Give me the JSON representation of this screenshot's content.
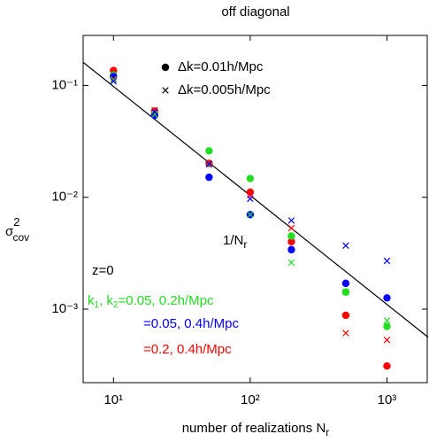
{
  "chart_data": {
    "type": "scatter",
    "title": "off diagonal",
    "x_label": {
      "text": "number of realizations N",
      "sub": "r"
    },
    "y_label": {
      "symbol": "σ",
      "sup": "2",
      "sub": "cov"
    },
    "x_log": true,
    "y_log": true,
    "xlim": [
      6,
      2000
    ],
    "ylim": [
      0.00022,
      0.28
    ],
    "xticks": [
      {
        "value": 10,
        "label": "10¹"
      },
      {
        "value": 100,
        "label": "10²"
      },
      {
        "value": 1000,
        "label": "10³"
      }
    ],
    "yticks": [
      {
        "value": 0.1,
        "label": "10⁻¹"
      },
      {
        "value": 0.01,
        "label": "10⁻²"
      },
      {
        "value": 0.001,
        "label": "10⁻³"
      }
    ],
    "x": [
      10,
      20,
      50,
      100,
      200,
      500,
      1000
    ],
    "series": [
      {
        "color": "#ff0000",
        "marker": "dot",
        "values": [
          0.136,
          0.059,
          0.0201,
          0.0111,
          0.004,
          0.00088,
          0.00031
        ]
      },
      {
        "color": "#22dd22",
        "marker": "dot",
        "values": [
          0.124,
          0.056,
          0.026,
          0.0147,
          0.0045,
          0.00142,
          0.0007
        ]
      },
      {
        "color": "#0000ff",
        "marker": "dot",
        "values": [
          0.12,
          0.054,
          0.0151,
          0.007,
          0.0034,
          0.0017,
          0.00126
        ]
      },
      {
        "color": "#ff0000",
        "marker": "cross",
        "values": [
          0.114,
          0.06,
          0.02,
          0.0104,
          0.0053,
          0.00061,
          0.00053
        ]
      },
      {
        "color": "#22dd22",
        "marker": "cross",
        "values": [
          0.112,
          0.055,
          0.0196,
          0.007,
          0.0026,
          0.00142,
          0.00079
        ]
      },
      {
        "color": "#0000ff",
        "marker": "cross",
        "values": [
          0.109,
          0.058,
          0.0198,
          0.0097,
          0.0062,
          0.0037,
          0.0027
        ]
      }
    ],
    "line": {
      "color": "#000000",
      "x": [
        6,
        2000
      ],
      "values": [
        0.161,
        0.00056
      ]
    },
    "line_label": {
      "text": "1/N",
      "sub": "r"
    },
    "legend": [
      {
        "label": "Δk=0.01h/Mpc",
        "marker": "dot"
      },
      {
        "label": "Δk=0.005h/Mpc",
        "marker": "cross"
      }
    ],
    "annotations": [
      {
        "text": "z=0",
        "color": "#000000"
      },
      {
        "parts": [
          "k",
          "1",
          ", k",
          "2",
          "=0.05, 0.2h/Mpc"
        ],
        "color": "#22dd22"
      },
      {
        "text": "=0.05, 0.4h/Mpc",
        "color": "#0000ff"
      },
      {
        "text": "=0.2, 0.4h/Mpc",
        "color": "#ff0000"
      }
    ]
  }
}
